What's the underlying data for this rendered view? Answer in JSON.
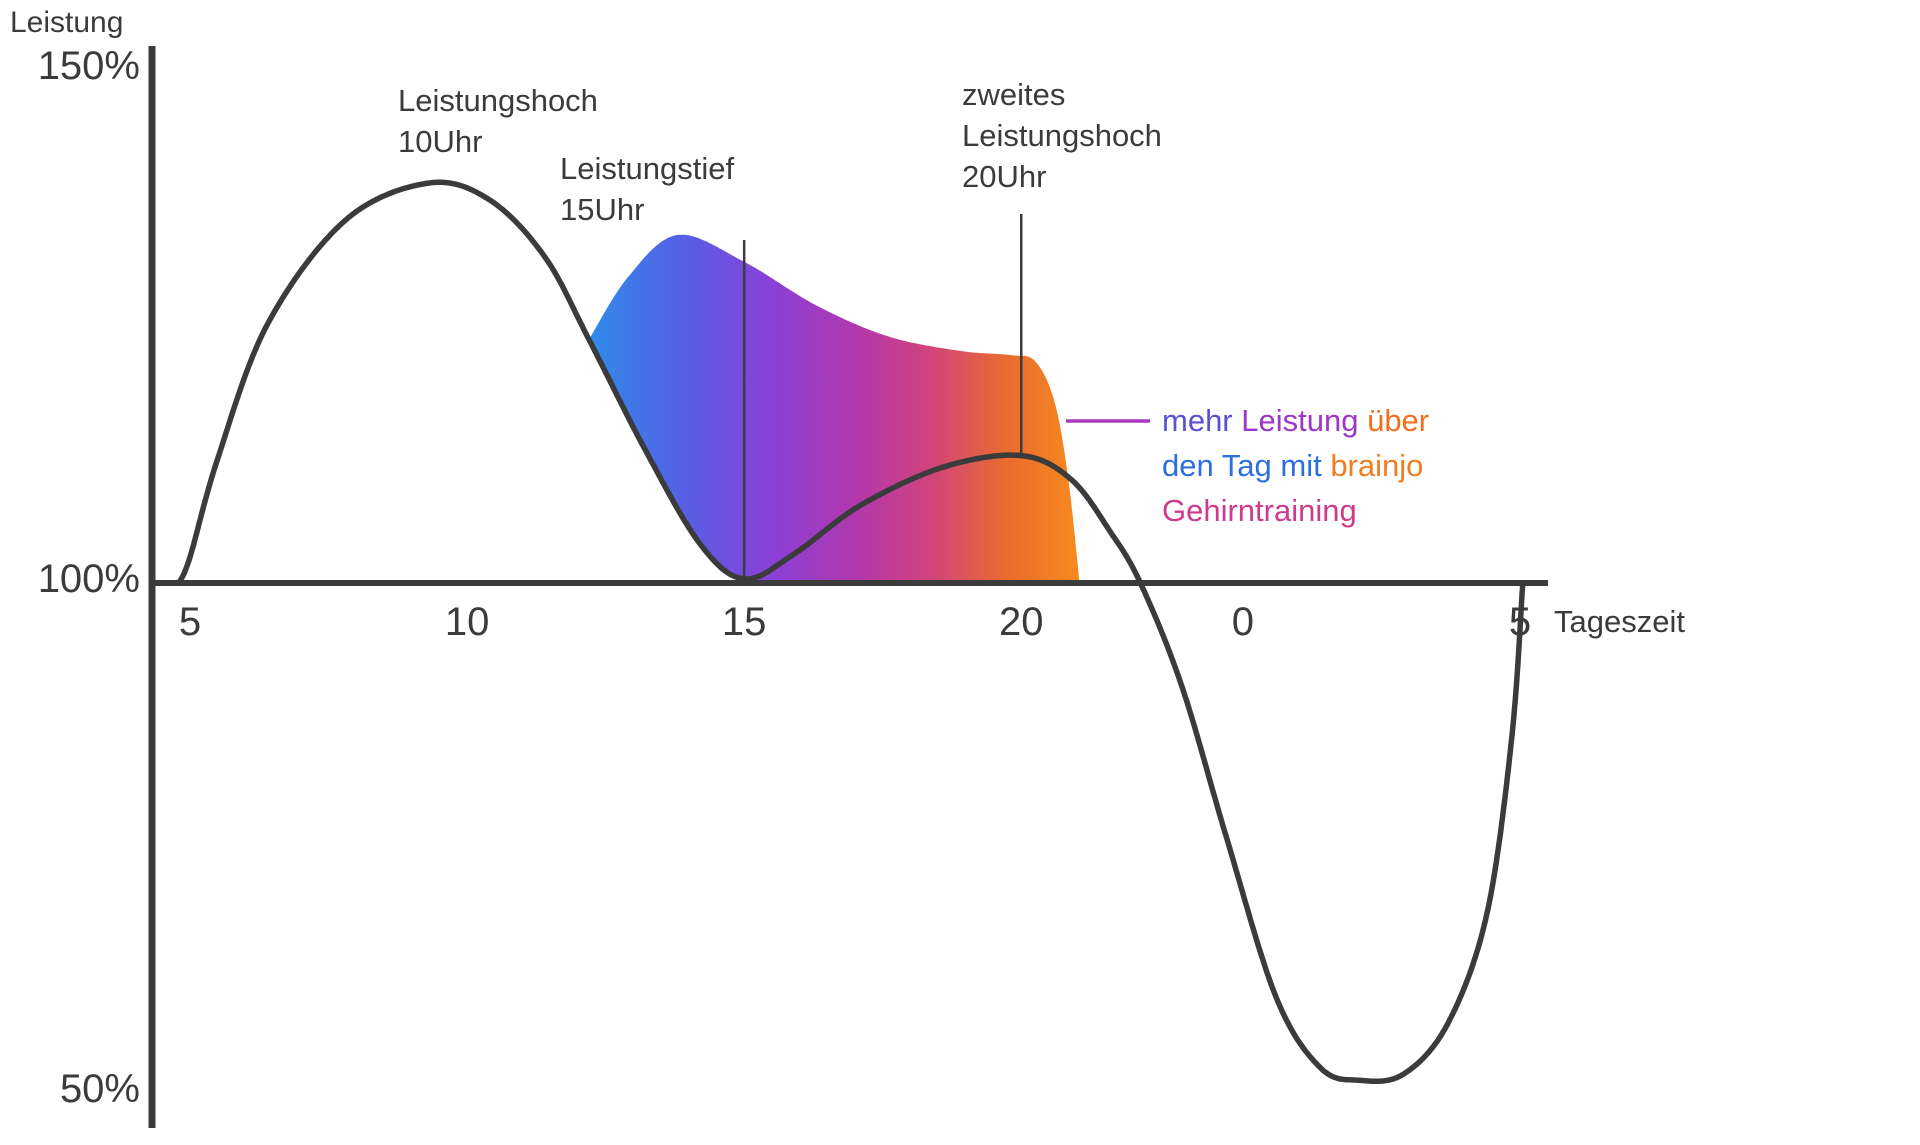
{
  "page": {
    "background": "#ffffff"
  },
  "chart_data": {
    "type": "area",
    "title": "",
    "ylabel": "Leistung",
    "xlabel": "Tageszeit",
    "ylim": [
      50,
      150
    ],
    "baseline_value": 100,
    "x_axis_hours": [
      5,
      29
    ],
    "grid": false,
    "y_ticks": [
      {
        "label": "150%",
        "value": 150
      },
      {
        "label": "100%",
        "value": 100
      },
      {
        "label": "50%",
        "value": 50
      }
    ],
    "x_ticks": [
      {
        "label": "5",
        "hour": 5
      },
      {
        "label": "10",
        "hour": 10
      },
      {
        "label": "15",
        "hour": 15
      },
      {
        "label": "20",
        "hour": 20
      },
      {
        "label": "0",
        "hour": 24
      },
      {
        "label": "5",
        "hour": 29
      }
    ],
    "series": [
      {
        "name": "natural-performance-curve",
        "color": "#3b3b3b",
        "points": [
          [
            4.8,
            100
          ],
          [
            5.0,
            102.5
          ],
          [
            5.5,
            112
          ],
          [
            6.4,
            125
          ],
          [
            7.8,
            135
          ],
          [
            9.3,
            138.6
          ],
          [
            10.4,
            137
          ],
          [
            11.4,
            131.5
          ],
          [
            12.2,
            123.5
          ],
          [
            13.2,
            113
          ],
          [
            14.2,
            103.8
          ],
          [
            15.0,
            100.4
          ],
          [
            15.9,
            102.8
          ],
          [
            17.1,
            107.5
          ],
          [
            18.6,
            111.2
          ],
          [
            20.0,
            112.3
          ],
          [
            20.9,
            110
          ],
          [
            21.6,
            105
          ],
          [
            22.15,
            100
          ],
          [
            22.9,
            90
          ],
          [
            23.7,
            75.5
          ],
          [
            24.6,
            60
          ],
          [
            25.4,
            53.2
          ],
          [
            26.1,
            52
          ],
          [
            26.9,
            52.6
          ],
          [
            27.7,
            57.5
          ],
          [
            28.4,
            68
          ],
          [
            28.85,
            85
          ],
          [
            29.05,
            100
          ]
        ]
      },
      {
        "name": "brainjo-performance-curve",
        "fill": "gradient",
        "baseline": 100,
        "points": [
          [
            12.2,
            123.5
          ],
          [
            12.9,
            129.5
          ],
          [
            13.8,
            133.6
          ],
          [
            15.0,
            131.0
          ],
          [
            16.3,
            126.8
          ],
          [
            17.6,
            123.8
          ],
          [
            18.9,
            122.4
          ],
          [
            19.8,
            122.0
          ],
          [
            20.25,
            121.4
          ],
          [
            20.6,
            117.5
          ],
          [
            20.85,
            110.0
          ],
          [
            21.05,
            100.1
          ]
        ]
      }
    ],
    "gradient_stops": [
      {
        "offset": "0%",
        "color": "#2f8ce9"
      },
      {
        "offset": "18%",
        "color": "#5461e6"
      },
      {
        "offset": "38%",
        "color": "#8c3fd6"
      },
      {
        "offset": "55%",
        "color": "#b338ab"
      },
      {
        "offset": "70%",
        "color": "#d2447b"
      },
      {
        "offset": "85%",
        "color": "#ea6b2e"
      },
      {
        "offset": "100%",
        "color": "#f68b1f"
      }
    ],
    "annotations": [
      {
        "lines": [
          "Leistungshoch",
          "10Uhr"
        ],
        "marker_line": null
      },
      {
        "lines": [
          "Leistungstief",
          "15Uhr"
        ],
        "marker_line": {
          "hour": 15,
          "to_value": 100.4
        }
      },
      {
        "lines": [
          "zweites",
          "Leistungshoch",
          "20Uhr"
        ],
        "marker_line": {
          "hour": 20,
          "to_value": 112.3
        }
      }
    ],
    "legend": {
      "leader_color": "#a93ac4",
      "lines": [
        [
          {
            "text": "mehr ",
            "color": "#5a52d5"
          },
          {
            "text": "Leistung ",
            "color": "#9c37c9"
          },
          {
            "text": "über",
            "color": "#f2701d"
          }
        ],
        [
          {
            "text": "den Tag mit ",
            "color": "#2e6fe0"
          },
          {
            "text": "brainjo",
            "color": "#f07d22"
          }
        ],
        [
          {
            "text": "Gehirntraining",
            "color": "#d03a8c"
          }
        ]
      ]
    },
    "axis_color": "#3b3b3b"
  }
}
